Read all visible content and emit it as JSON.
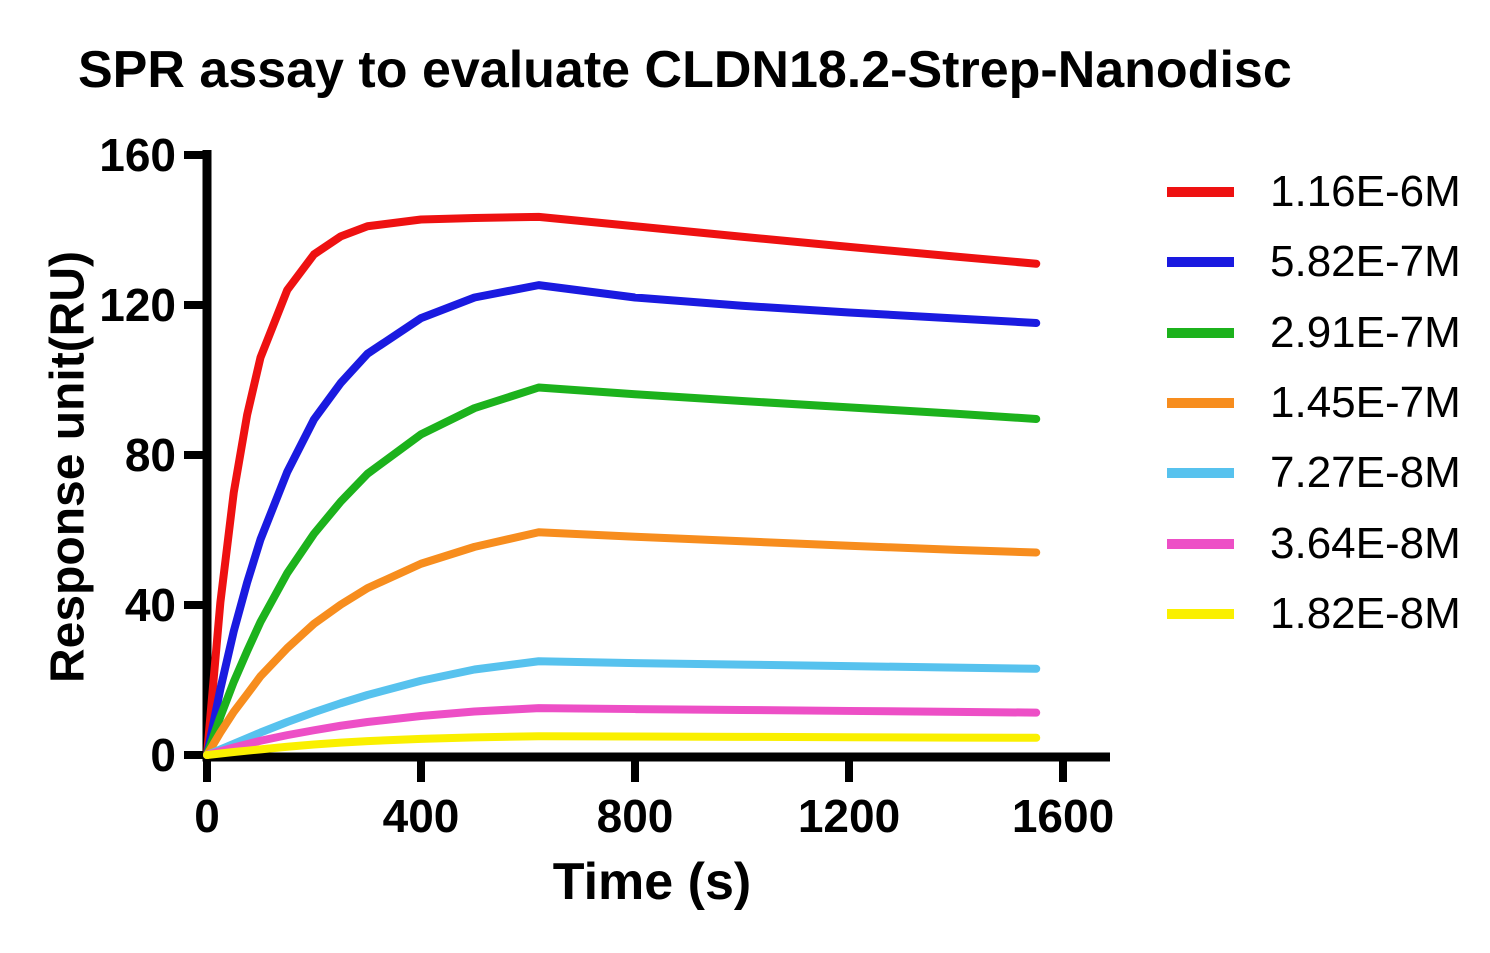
{
  "chart_data": {
    "type": "line",
    "title": "SPR assay to evaluate CLDN18.2-Strep-Nanodisc",
    "xlabel": "Time (s)",
    "ylabel": "Response unit(RU)",
    "xlim": [
      0,
      1690
    ],
    "ylim": [
      0,
      160
    ],
    "xticks": [
      0,
      400,
      800,
      1200,
      1600
    ],
    "yticks": [
      0,
      40,
      80,
      120,
      160
    ],
    "grid": false,
    "legend_position": "right",
    "axis_color": "#000000",
    "background_color": "#ffffff",
    "association_end_s": 620,
    "x": [
      0,
      25,
      50,
      75,
      100,
      150,
      200,
      250,
      300,
      400,
      500,
      620,
      800,
      1000,
      1200,
      1400,
      1550
    ],
    "series": [
      {
        "name": "1.16E-6M",
        "color": "#EE1111",
        "values": [
          0,
          40.7,
          70,
          90.7,
          106,
          124,
          133.5,
          138.3,
          141,
          142.8,
          143.2,
          143.5,
          141.0,
          138.2,
          135.5,
          132.9,
          131.0
        ]
      },
      {
        "name": "5.82E-7M",
        "color": "#1A1AE0",
        "values": [
          0,
          17.6,
          33,
          46,
          57.5,
          75.5,
          89.5,
          99.2,
          107,
          116.5,
          122,
          125.3,
          122.0,
          119.8,
          118.0,
          116.4,
          115.2
        ]
      },
      {
        "name": "2.91E-7M",
        "color": "#1CB21C",
        "values": [
          0,
          10.2,
          19.5,
          27.7,
          35.5,
          48.5,
          59,
          67.6,
          75,
          85.5,
          92.5,
          98.0,
          96.2,
          94.4,
          92.7,
          91.0,
          89.6
        ]
      },
      {
        "name": "1.45E-7M",
        "color": "#F78D1E",
        "values": [
          0,
          6,
          11.5,
          16.2,
          21,
          28.5,
          35,
          40.1,
          44.5,
          51,
          55.5,
          59.4,
          58.2,
          57.0,
          55.8,
          54.7,
          54.0
        ]
      },
      {
        "name": "7.27E-8M",
        "color": "#57C2EE",
        "values": [
          0,
          1.5,
          3,
          4.5,
          6,
          8.8,
          11.4,
          13.8,
          16,
          19.8,
          22.8,
          25.0,
          24.5,
          24.1,
          23.7,
          23.3,
          23.0
        ]
      },
      {
        "name": "3.64E-8M",
        "color": "#ED4FC6",
        "values": [
          0,
          1,
          2,
          2.9,
          3.8,
          5.3,
          6.6,
          7.8,
          8.8,
          10.4,
          11.6,
          12.5,
          12.25,
          12.0,
          11.75,
          11.5,
          11.3
        ]
      },
      {
        "name": "1.82E-8M",
        "color": "#FAF000",
        "values": [
          0,
          0.4,
          0.8,
          1.15,
          1.5,
          2.2,
          2.8,
          3.3,
          3.7,
          4.3,
          4.7,
          5.0,
          4.95,
          4.85,
          4.75,
          4.65,
          4.6
        ]
      }
    ]
  }
}
